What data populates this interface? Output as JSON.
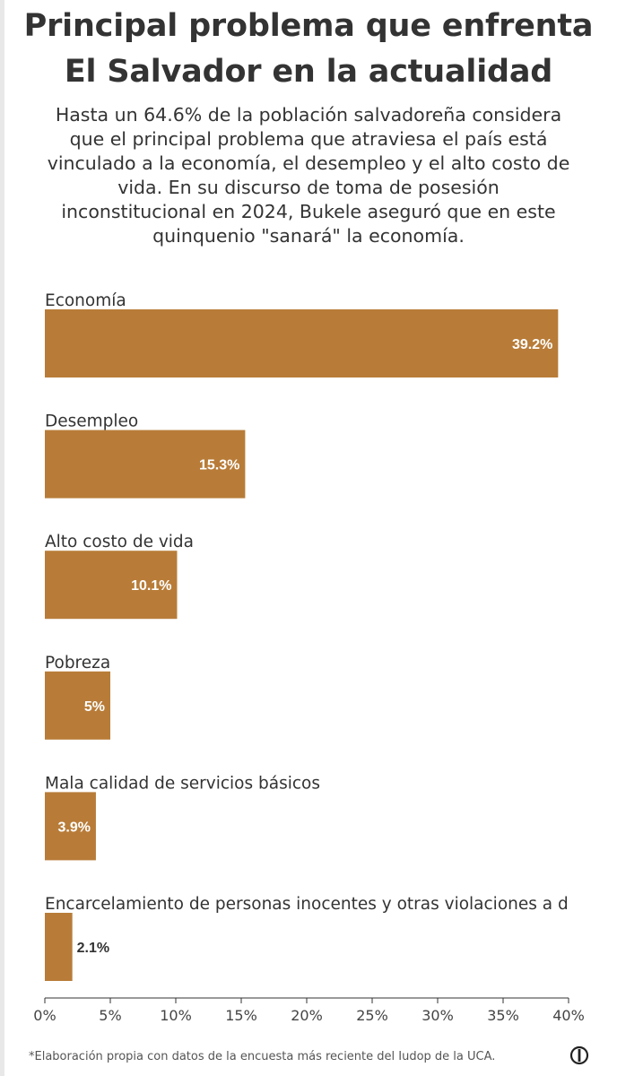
{
  "header": {
    "title_line1": "Principal problema que enfrenta",
    "title_line2": "El Salvador en la actualidad",
    "subtitle_lines": [
      "Hasta un 64.6% de la población salvadoreña considera",
      "que el principal problema que atraviesa el país está",
      "vinculado a la economía, el desempleo y el alto costo de",
      "vida. En su discurso de toma de posesión",
      "inconstitucional en 2024, Bukele aseguró que en este",
      "quinquenio \"sanará\" la economía."
    ]
  },
  "chart_data": {
    "type": "bar",
    "orientation": "horizontal",
    "categories": [
      "Economía",
      "Desempleo",
      "Alto costo de vida",
      "Pobreza",
      "Mala calidad de servicios básicos",
      "Encarcelamiento de personas inocentes y otras violaciones a derechos humanos"
    ],
    "values": [
      39.2,
      15.3,
      10.1,
      5,
      3.9,
      2.1
    ],
    "value_labels": [
      "39.2%",
      "15.3%",
      "10.1%",
      "5%",
      "3.9%",
      "2.1%"
    ],
    "xlim": [
      0,
      40
    ],
    "x_ticks": [
      "0%",
      "5%",
      "10%",
      "15%",
      "20%",
      "25%",
      "30%",
      "35%",
      "40%"
    ],
    "grid": false,
    "bar_color": "#b87c38",
    "label_color_inside": "#ffffff",
    "label_color_outside": "#333333"
  },
  "footer": {
    "note": "*Elaboración propia con datos de la encuesta más reciente del Iudop de la UCA.",
    "logo_icon": "outlet-logo-icon"
  }
}
